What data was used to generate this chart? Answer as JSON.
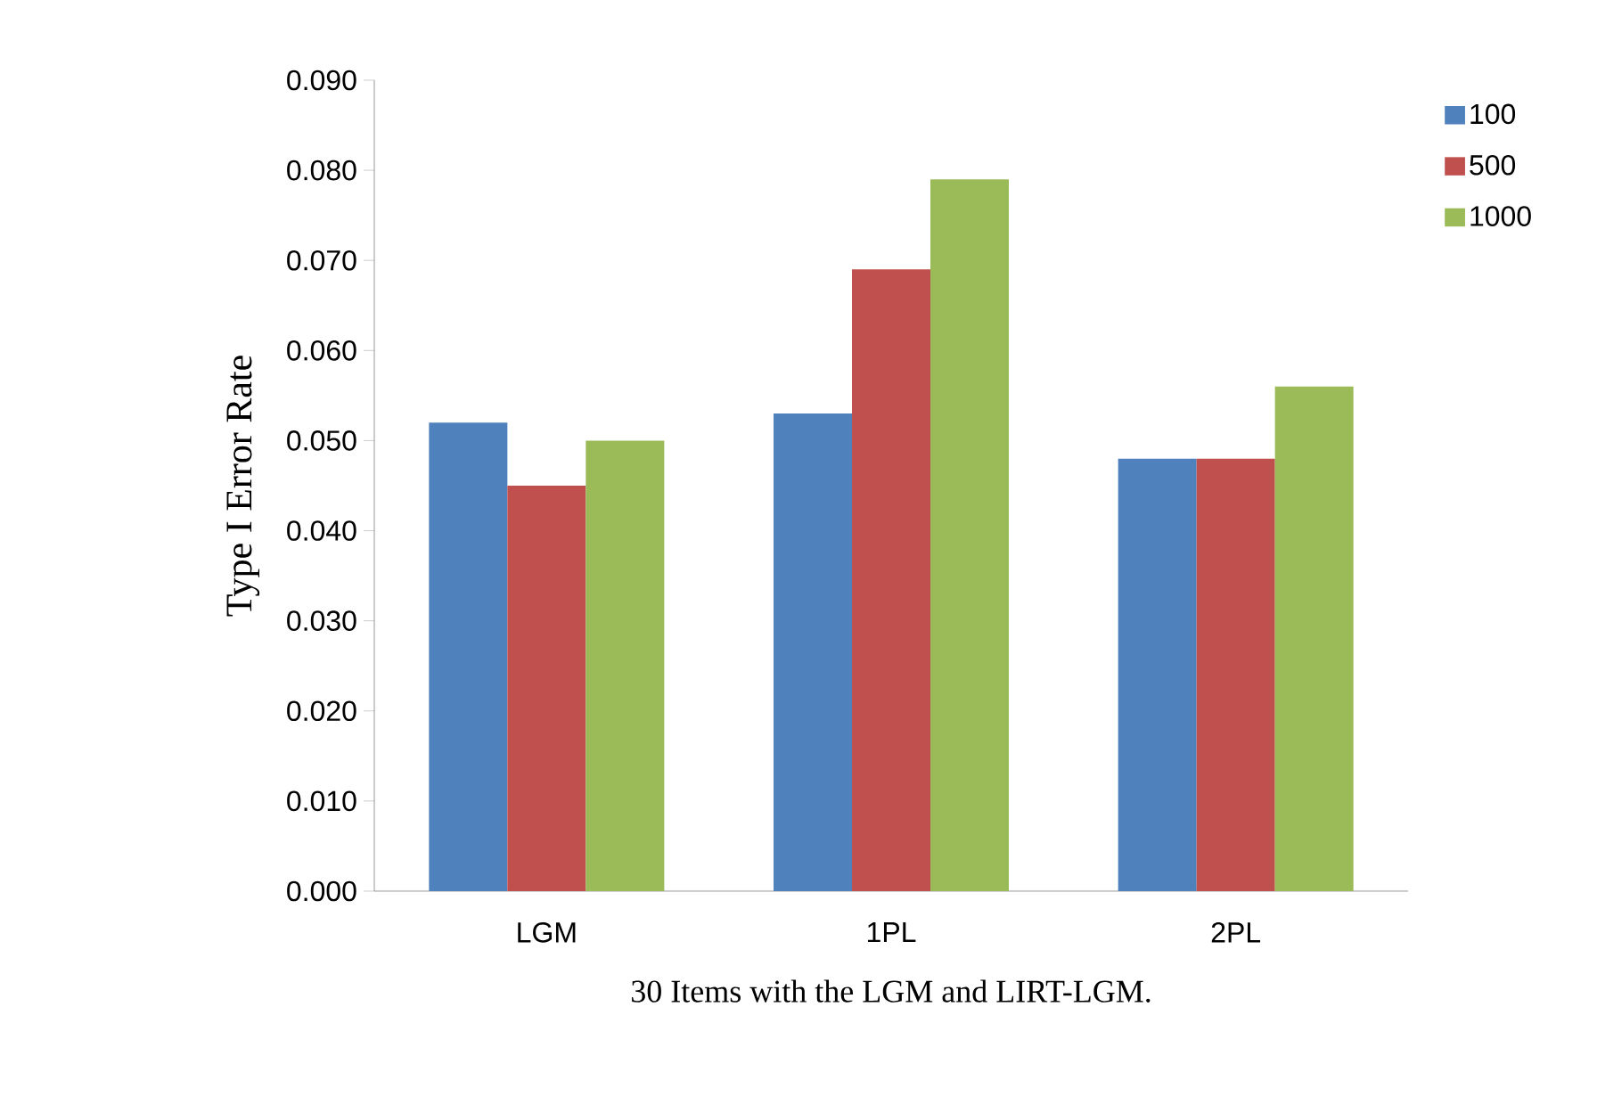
{
  "chart_data": {
    "type": "bar",
    "categories": [
      "LGM",
      "1PL",
      "2PL"
    ],
    "series": [
      {
        "name": "100",
        "color": "#4f81bd",
        "values": [
          0.052,
          0.053,
          0.048
        ]
      },
      {
        "name": "500",
        "color": "#c0504d",
        "values": [
          0.045,
          0.069,
          0.048
        ]
      },
      {
        "name": "1000",
        "color": "#9bbb59",
        "values": [
          0.05,
          0.079,
          0.056
        ]
      }
    ],
    "xlabel": "30 Items with the LGM and LIRT-LGM.",
    "ylabel": "Type I Error Rate",
    "ylim": [
      0,
      0.09
    ],
    "yticks": [
      {
        "value": 0,
        "label": "0.000"
      },
      {
        "value": 0.01,
        "label": "0.010"
      },
      {
        "value": 0.02,
        "label": "0.020"
      },
      {
        "value": 0.03,
        "label": "0.030"
      },
      {
        "value": 0.04,
        "label": "0.040"
      },
      {
        "value": 0.05,
        "label": "0.050"
      },
      {
        "value": 0.06,
        "label": "0.060"
      },
      {
        "value": 0.07,
        "label": "0.070"
      },
      {
        "value": 0.08,
        "label": "0.080"
      },
      {
        "value": 0.09,
        "label": "0.090"
      }
    ],
    "legend": "top right",
    "grid": false
  }
}
